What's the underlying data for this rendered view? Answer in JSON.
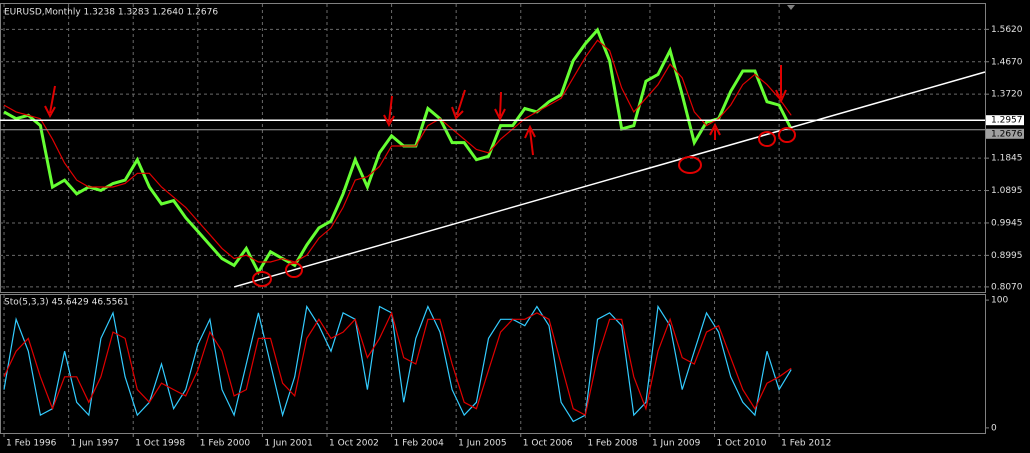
{
  "chart_data": [
    {
      "type": "line",
      "title": "EURUSD,Monthly  1.3238 1.3283 1.2640 1.2676",
      "x": [
        "1996-02",
        "1996-05",
        "1996-08",
        "1996-11",
        "1997-02",
        "1997-05",
        "1997-08",
        "1997-11",
        "1998-02",
        "1998-05",
        "1998-08",
        "1998-11",
        "1999-02",
        "1999-05",
        "1999-08",
        "1999-11",
        "2000-02",
        "2000-05",
        "2000-08",
        "2000-11",
        "2001-02",
        "2001-05",
        "2001-08",
        "2001-11",
        "2002-02",
        "2002-05",
        "2002-08",
        "2002-11",
        "2003-02",
        "2003-05",
        "2003-08",
        "2003-11",
        "2004-02",
        "2004-05",
        "2004-08",
        "2004-11",
        "2005-02",
        "2005-05",
        "2005-08",
        "2005-11",
        "2006-02",
        "2006-05",
        "2006-08",
        "2006-11",
        "2007-02",
        "2007-05",
        "2007-08",
        "2007-11",
        "2008-02",
        "2008-05",
        "2008-08",
        "2008-11",
        "2009-02",
        "2009-05",
        "2009-08",
        "2009-11",
        "2010-02",
        "2010-05",
        "2010-08",
        "2010-11",
        "2011-02",
        "2011-05",
        "2011-08",
        "2011-11",
        "2012-02",
        "2012-05"
      ],
      "series": [
        {
          "color": "#66ff33",
          "values": [
            1.32,
            1.3,
            1.31,
            1.28,
            1.1,
            1.12,
            1.08,
            1.1,
            1.09,
            1.11,
            1.12,
            1.18,
            1.1,
            1.05,
            1.06,
            1.01,
            0.97,
            0.93,
            0.89,
            0.87,
            0.92,
            0.85,
            0.91,
            0.89,
            0.87,
            0.93,
            0.98,
            1.0,
            1.08,
            1.18,
            1.1,
            1.2,
            1.25,
            1.22,
            1.22,
            1.33,
            1.3,
            1.23,
            1.23,
            1.18,
            1.19,
            1.28,
            1.28,
            1.33,
            1.32,
            1.35,
            1.37,
            1.47,
            1.52,
            1.56,
            1.47,
            1.27,
            1.28,
            1.41,
            1.43,
            1.5,
            1.37,
            1.23,
            1.29,
            1.3,
            1.38,
            1.44,
            1.44,
            1.35,
            1.34,
            1.27
          ]
        },
        {
          "color": "#e00000",
          "values": [
            1.34,
            1.32,
            1.31,
            1.3,
            1.24,
            1.17,
            1.12,
            1.1,
            1.1,
            1.1,
            1.11,
            1.14,
            1.14,
            1.1,
            1.07,
            1.04,
            1.0,
            0.96,
            0.92,
            0.89,
            0.9,
            0.88,
            0.88,
            0.89,
            0.88,
            0.9,
            0.95,
            0.98,
            1.04,
            1.12,
            1.13,
            1.16,
            1.22,
            1.22,
            1.22,
            1.28,
            1.3,
            1.27,
            1.24,
            1.21,
            1.2,
            1.24,
            1.27,
            1.3,
            1.32,
            1.34,
            1.36,
            1.42,
            1.48,
            1.53,
            1.5,
            1.39,
            1.32,
            1.36,
            1.4,
            1.46,
            1.42,
            1.32,
            1.28,
            1.3,
            1.34,
            1.4,
            1.43,
            1.4,
            1.36,
            1.31
          ]
        }
      ],
      "xlim": [
        "1996-01",
        "2016-05"
      ],
      "ylim": [
        0.7921,
        1.6363
      ],
      "yticks": [
        {
          "value": 0.807,
          "label": "0.8070"
        },
        {
          "value": 0.8995,
          "label": "0.8995"
        },
        {
          "value": 0.9945,
          "label": "0.9945"
        },
        {
          "value": 1.0895,
          "label": "1.0895"
        },
        {
          "value": 1.1845,
          "label": "1.1845"
        },
        {
          "value": 1.372,
          "label": "1.3720"
        },
        {
          "value": 1.467,
          "label": "1.4670"
        },
        {
          "value": 1.562,
          "label": "1.5620"
        }
      ],
      "levels": [
        {
          "value": 1.2957,
          "label": "1.2957",
          "color": "#ffffff"
        },
        {
          "value": 1.2676,
          "label": "1.2676",
          "color": "#a0a0a0"
        }
      ],
      "trendline": {
        "x": [
          "2000-11",
          "2016-05"
        ],
        "y": [
          0.807,
          1.437
        ],
        "color": "#ffffff"
      },
      "grid": true
    },
    {
      "type": "line",
      "title": "Sto(5,3,3) 45.6429 46.5561",
      "series": [
        {
          "color": "#33ccff",
          "values": [
            30,
            85,
            60,
            10,
            15,
            60,
            20,
            10,
            70,
            90,
            40,
            10,
            20,
            50,
            15,
            30,
            65,
            85,
            30,
            10,
            50,
            90,
            50,
            10,
            40,
            95,
            80,
            60,
            90,
            85,
            30,
            95,
            90,
            20,
            70,
            95,
            75,
            30,
            10,
            20,
            70,
            85,
            85,
            80,
            95,
            80,
            20,
            5,
            10,
            85,
            90,
            80,
            10,
            20,
            95,
            80,
            30,
            60,
            90,
            75,
            40,
            20,
            10,
            60,
            30,
            45.6
          ]
        },
        {
          "color": "#e00000",
          "values": [
            40,
            60,
            70,
            40,
            15,
            40,
            40,
            20,
            40,
            75,
            70,
            30,
            20,
            35,
            30,
            25,
            45,
            75,
            60,
            25,
            30,
            70,
            70,
            35,
            25,
            70,
            85,
            70,
            75,
            85,
            55,
            70,
            90,
            55,
            50,
            85,
            85,
            50,
            20,
            15,
            45,
            75,
            85,
            85,
            90,
            85,
            50,
            15,
            10,
            55,
            85,
            85,
            40,
            15,
            60,
            85,
            55,
            50,
            75,
            80,
            55,
            30,
            15,
            35,
            40,
            46.6
          ]
        }
      ],
      "xlim": [
        "1996-01",
        "2016-05"
      ],
      "ylim": [
        -4,
        104
      ],
      "yticks": [
        0,
        100
      ],
      "xticks": [
        {
          "value": "1996-02",
          "label": "1 Feb 1996"
        },
        {
          "value": "1997-06",
          "label": "1 Jun 1997"
        },
        {
          "value": "1998-10",
          "label": "1 Oct 1998"
        },
        {
          "value": "2000-02",
          "label": "1 Feb 2000"
        },
        {
          "value": "2001-06",
          "label": "1 Jun 2001"
        },
        {
          "value": "2002-10",
          "label": "1 Oct 2002"
        },
        {
          "value": "2004-02",
          "label": "1 Feb 2004"
        },
        {
          "value": "2005-06",
          "label": "1 Jun 2005"
        },
        {
          "value": "2006-10",
          "label": "1 Oct 2006"
        },
        {
          "value": "2008-02",
          "label": "1 Feb 2008"
        },
        {
          "value": "2009-06",
          "label": "1 Jun 2009"
        },
        {
          "value": "2010-10",
          "label": "1 Oct 2010"
        },
        {
          "value": "2012-02",
          "label": "1 Feb 2012"
        }
      ],
      "grid": true
    }
  ]
}
